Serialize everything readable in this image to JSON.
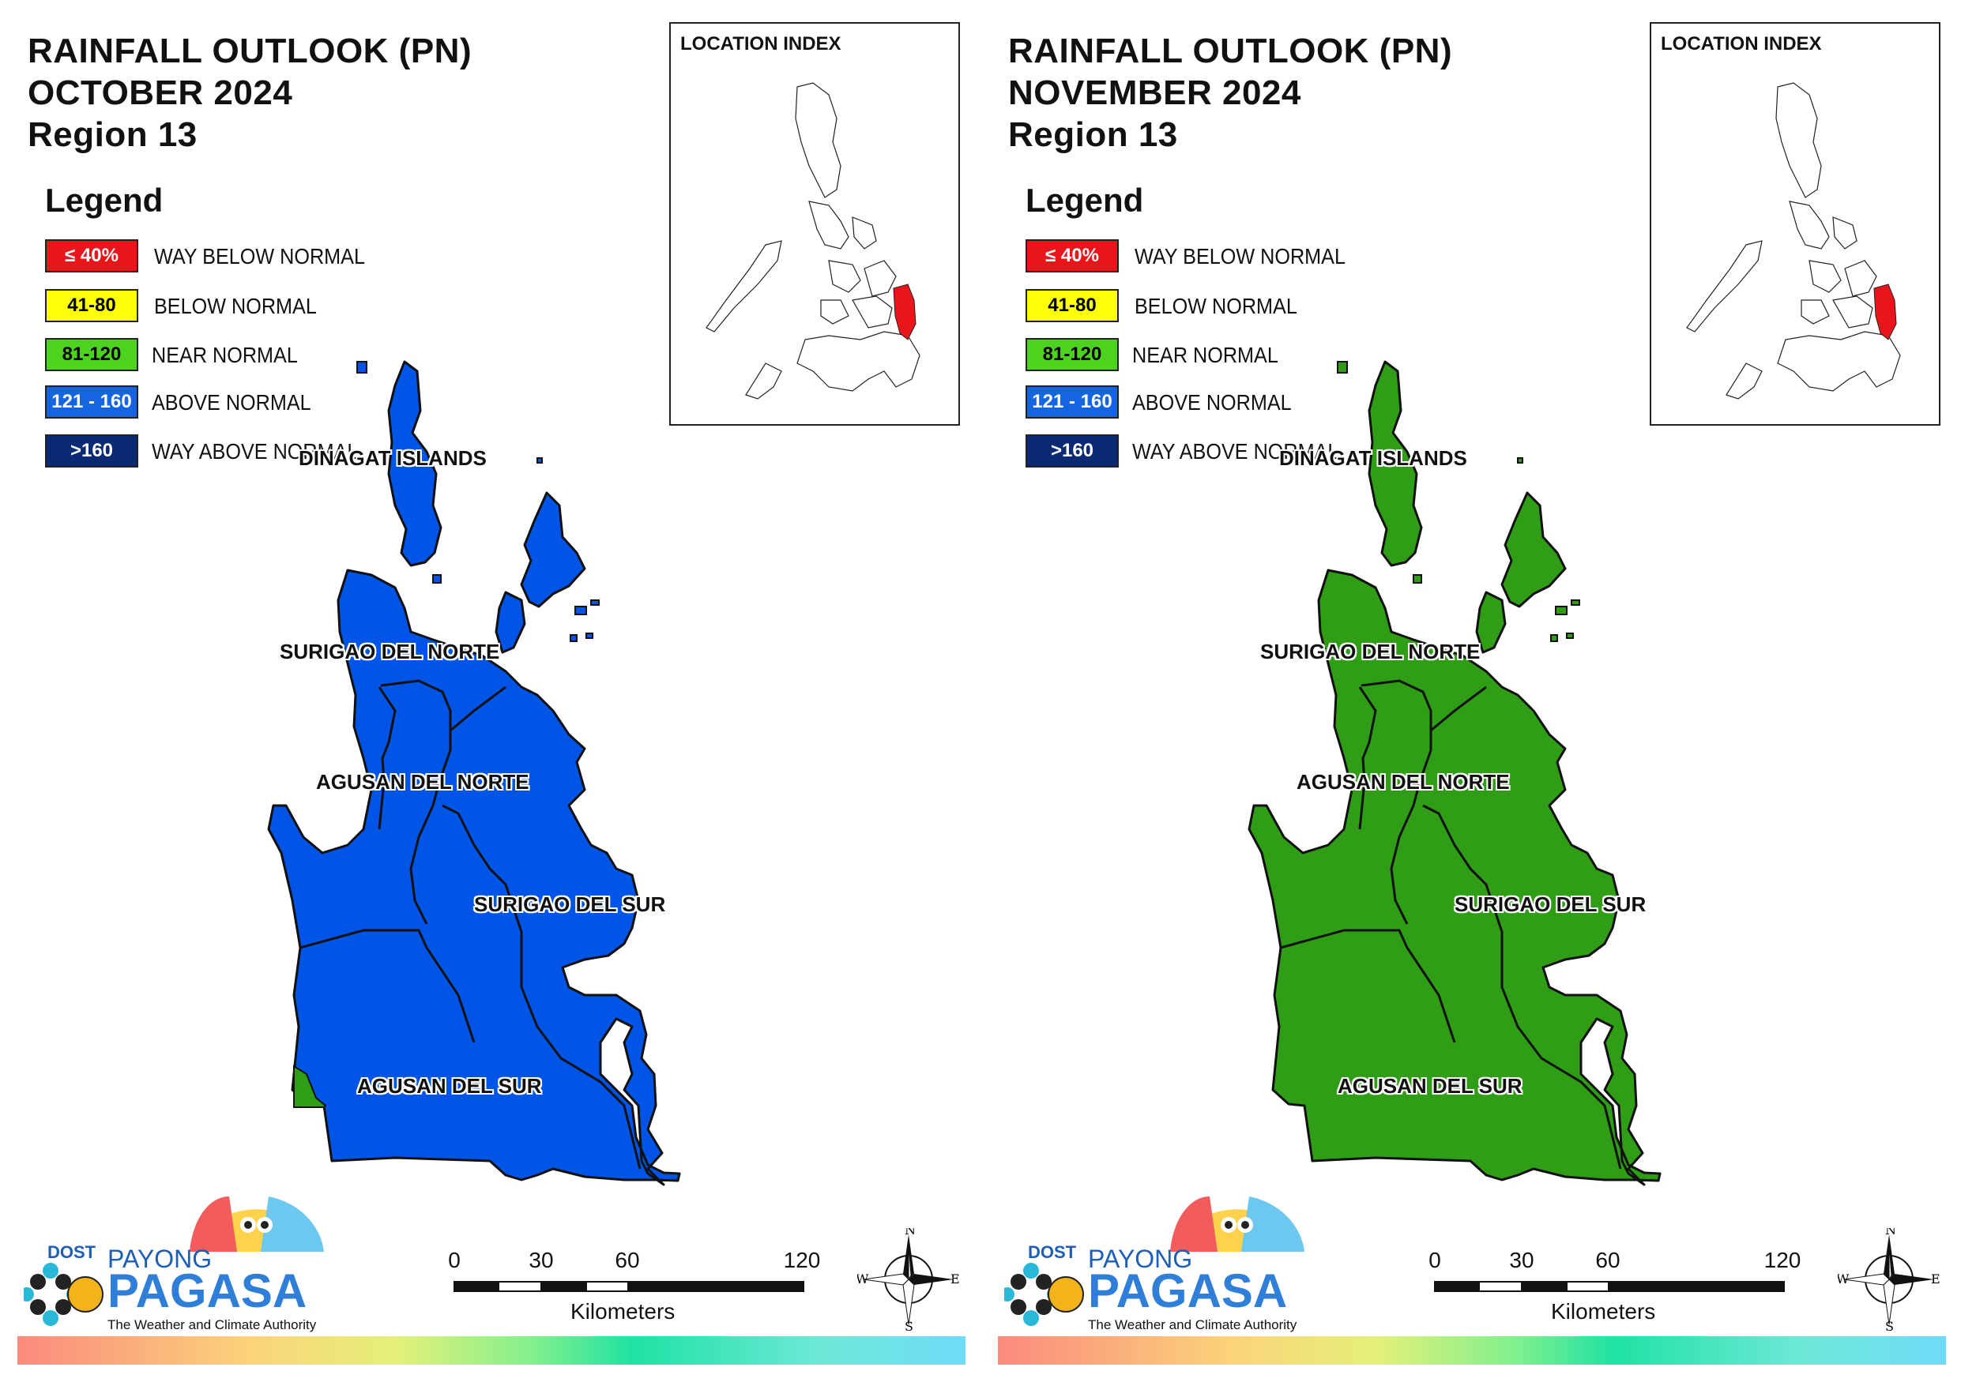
{
  "panels": [
    {
      "title_line1": "RAINFALL OUTLOOK (PN)",
      "title_line2": "OCTOBER 2024",
      "title_line3": "Region 13",
      "fill_color": "#0055e6",
      "fill_category": "ABOVE NORMAL",
      "minor_fill_color": "#2f9e16"
    },
    {
      "title_line1": "RAINFALL OUTLOOK (PN)",
      "title_line2": "NOVEMBER 2024",
      "title_line3": "Region 13",
      "fill_color": "#2f9e16",
      "fill_category": "NEAR NORMAL",
      "minor_fill_color": "#2f9e16"
    }
  ],
  "legend": {
    "title": "Legend",
    "items": [
      {
        "range": "≤ 40%",
        "label": "WAY BELOW NORMAL",
        "color": "#e8161b",
        "text_color": "#ffffff"
      },
      {
        "range": "41-80",
        "label": "BELOW NORMAL",
        "color": "#ffff0a",
        "text_color": "#000000"
      },
      {
        "range": "81-120",
        "label": "NEAR NORMAL",
        "color": "#4cd31e",
        "text_color": "#000000"
      },
      {
        "range": "121 - 160",
        "label": "ABOVE NORMAL",
        "color": "#1565e0",
        "text_color": "#ffffff"
      },
      {
        "range": ">160",
        "label": "WAY ABOVE NORMAL",
        "color": "#0b2a73",
        "text_color": "#ffffff"
      }
    ]
  },
  "provinces": {
    "dinagat": "DINAGAT ISLANDS",
    "surigao_norte": "SURIGAO DEL NORTE",
    "agusan_norte": "AGUSAN DEL NORTE",
    "surigao_sur": "SURIGAO DEL SUR",
    "agusan_sur": "AGUSAN DEL SUR"
  },
  "inset": {
    "title": "LOCATION INDEX",
    "highlight_color": "#e8161b"
  },
  "scale_bar": {
    "ticks": [
      "0",
      "30",
      "60",
      "120"
    ],
    "unit": "Kilometers"
  },
  "compass": {
    "n": "N",
    "s": "S",
    "e": "E",
    "w": "W"
  },
  "logo": {
    "dost": "DOST",
    "payong": "PAYONG",
    "pagasa": "PAGASA",
    "tagline": "The Weather and Climate Authority"
  }
}
